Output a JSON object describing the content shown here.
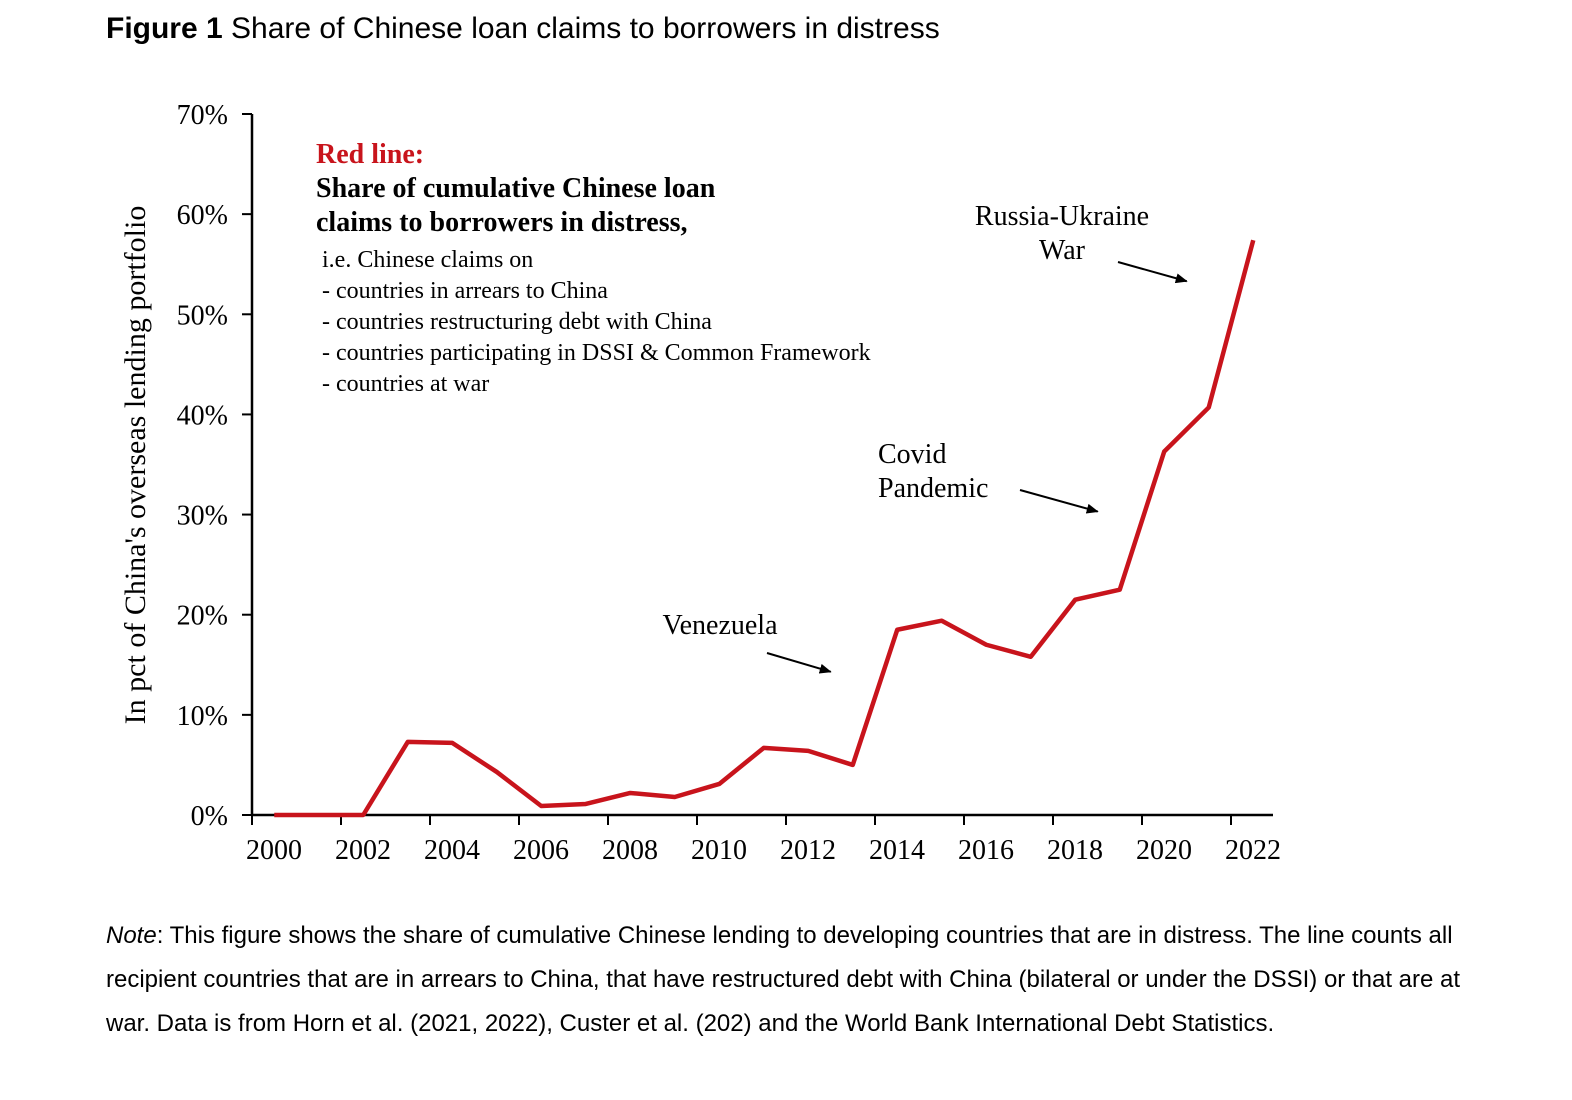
{
  "figure": {
    "title_prefix": "Figure 1",
    "title": "Share of Chinese loan claims to borrowers in distress"
  },
  "chart_data": {
    "type": "line",
    "ylabel": "In pct of China's overseas lending portfolio",
    "xlabel": "",
    "ylim": [
      0,
      70
    ],
    "y_ticks": [
      "0%",
      "10%",
      "20%",
      "30%",
      "40%",
      "50%",
      "60%",
      "70%"
    ],
    "x_tick_labels": [
      "2000",
      "2002",
      "2004",
      "2006",
      "2008",
      "2010",
      "2012",
      "2014",
      "2016",
      "2018",
      "2020",
      "2022"
    ],
    "grid": false,
    "series": [
      {
        "color": "#c8141c",
        "x": [
          2000,
          2001,
          2002,
          2003,
          2004,
          2005,
          2006,
          2007,
          2008,
          2009,
          2010,
          2011,
          2012,
          2013,
          2014,
          2015,
          2016,
          2017,
          2018,
          2019,
          2020,
          2021,
          2022
        ],
        "values": [
          0,
          0,
          0,
          7.3,
          7.2,
          4.3,
          0.9,
          1.1,
          2.2,
          1.8,
          3.1,
          6.7,
          6.4,
          5.0,
          18.5,
          19.4,
          17.0,
          15.8,
          21.5,
          22.5,
          36.3,
          40.7,
          57.4
        ]
      }
    ],
    "legend_box": {
      "heading": "Red line:",
      "bold_lines": [
        "Share of cumulative Chinese loan",
        "claims to borrowers in distress,"
      ],
      "lines": [
        "i.e. Chinese claims on",
        "- countries in arrears to China",
        "- countries restructuring debt with China",
        "- countries participating in DSSI & Common Framework",
        "- countries at war"
      ]
    },
    "annotations": [
      {
        "lines": [
          "Venezuela"
        ],
        "x": 2013.5,
        "y": 13
      },
      {
        "lines": [
          "Covid",
          "Pandemic"
        ],
        "x": 2019.5,
        "y": 29
      },
      {
        "lines": [
          "Russia-Ukraine",
          "War"
        ],
        "x": 2021.5,
        "y": 52
      }
    ]
  },
  "note": {
    "label": "Note",
    "text": ": This figure shows the share of cumulative Chinese lending to developing countries that are in distress. The line counts all recipient countries that are in arrears to China, that have restructured debt with China (bilateral or under the DSSI) or that are at war. Data is from Horn et al. (2021, 2022), Custer et al. (202) and the World Bank International Debt Statistics."
  }
}
